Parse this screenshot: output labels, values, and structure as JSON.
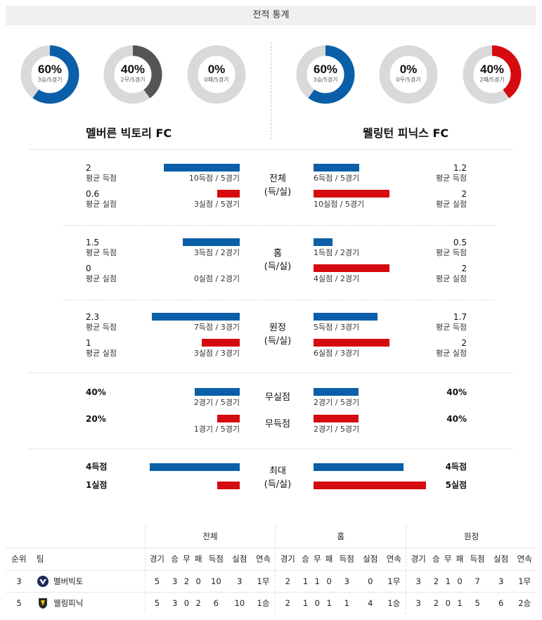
{
  "header": {
    "title": "전적 통계"
  },
  "teams": {
    "home": {
      "name": "멜버른 빅토리 FC",
      "short": "멜버빅토",
      "donuts": [
        {
          "pct": "60%",
          "sub": "3승/5경기",
          "value": 0.6,
          "color": "#0a5fa8"
        },
        {
          "pct": "40%",
          "sub": "2무/5경기",
          "value": 0.4,
          "color": "#555555"
        },
        {
          "pct": "0%",
          "sub": "0패/5경기",
          "value": 0.0,
          "color": "#d50b10"
        }
      ]
    },
    "away": {
      "name": "웰링턴 피닉스 FC",
      "short": "웰링피닉",
      "donuts": [
        {
          "pct": "60%",
          "sub": "3승/5경기",
          "value": 0.6,
          "color": "#0a5fa8"
        },
        {
          "pct": "0%",
          "sub": "0무/5경기",
          "value": 0.0,
          "color": "#555555"
        },
        {
          "pct": "40%",
          "sub": "2패/5경기",
          "value": 0.4,
          "color": "#d50b10"
        }
      ]
    }
  },
  "sections": [
    {
      "label1": "전체",
      "label2": "(득/실)",
      "home": {
        "gf_avg": "2",
        "gf_label": "평균 득점",
        "gf_cap": "10득점 / 5경기",
        "gf_ratio": 0.5,
        "ga_avg": "0.6",
        "ga_label": "평균 실점",
        "ga_cap": "3실점 / 5경기",
        "ga_ratio": 0.15
      },
      "away": {
        "gf_avg": "1.2",
        "gf_label": "평균 득점",
        "gf_cap": "6득점 / 5경기",
        "gf_ratio": 0.3,
        "ga_avg": "2",
        "ga_label": "평균 실점",
        "ga_cap": "10실점 / 5경기",
        "ga_ratio": 0.5
      }
    },
    {
      "label1": "홈",
      "label2": "(득/실)",
      "home": {
        "gf_avg": "1.5",
        "gf_label": "평균 득점",
        "gf_cap": "3득점 / 2경기",
        "gf_ratio": 0.375,
        "ga_avg": "0",
        "ga_label": "평균 실점",
        "ga_cap": "0실점 / 2경기",
        "ga_ratio": 0.0
      },
      "away": {
        "gf_avg": "0.5",
        "gf_label": "평균 득점",
        "gf_cap": "1득점 / 2경기",
        "gf_ratio": 0.125,
        "ga_avg": "2",
        "ga_label": "평균 실점",
        "ga_cap": "4실점 / 2경기",
        "ga_ratio": 0.5
      }
    },
    {
      "label1": "원정",
      "label2": "(득/실)",
      "home": {
        "gf_avg": "2.3",
        "gf_label": "평균 득점",
        "gf_cap": "7득점 / 3경기",
        "gf_ratio": 0.58,
        "ga_avg": "1",
        "ga_label": "평균 실점",
        "ga_cap": "3실점 / 3경기",
        "ga_ratio": 0.25
      },
      "away": {
        "gf_avg": "1.7",
        "gf_label": "평균 득점",
        "gf_cap": "5득점 / 3경기",
        "gf_ratio": 0.42,
        "ga_avg": "2",
        "ga_label": "평균 실점",
        "ga_cap": "6실점 / 3경기",
        "ga_ratio": 0.5
      }
    }
  ],
  "clean": {
    "rows": [
      {
        "label": "무실점",
        "home": {
          "pct": "40%",
          "cap": "2경기 / 5경기",
          "ratio": 0.4
        },
        "away": {
          "pct": "40%",
          "cap": "2경기 / 5경기",
          "ratio": 0.4
        }
      },
      {
        "label": "무득점",
        "home": {
          "pct": "20%",
          "cap": "1경기 / 5경기",
          "ratio": 0.2
        },
        "away": {
          "pct": "40%",
          "cap": "2경기 / 5경기",
          "ratio": 0.4
        }
      }
    ]
  },
  "max": {
    "label1": "최대",
    "label2": "(득/실)",
    "home": {
      "gf": "4득점",
      "gf_ratio": 0.8,
      "ga": "1실점",
      "ga_ratio": 0.2
    },
    "away": {
      "gf": "4득점",
      "gf_ratio": 0.8,
      "ga": "5실점",
      "ga_ratio": 1.0
    }
  },
  "standings": {
    "group_headers": [
      "전체",
      "홈",
      "원정"
    ],
    "col_rank": "순위",
    "col_team": "팀",
    "sub_headers": [
      "경기",
      "승",
      "무",
      "패",
      "득점",
      "실점",
      "연속"
    ],
    "rows": [
      {
        "rank": "3",
        "team": "멜버빅토",
        "all": [
          "5",
          "3",
          "2",
          "0",
          "10",
          "3",
          "1무"
        ],
        "home": [
          "2",
          "1",
          "1",
          "0",
          "3",
          "0",
          "1무"
        ],
        "away": [
          "3",
          "2",
          "1",
          "0",
          "7",
          "3",
          "1무"
        ]
      },
      {
        "rank": "5",
        "team": "웰링피닉",
        "all": [
          "5",
          "3",
          "0",
          "2",
          "6",
          "10",
          "1승"
        ],
        "home": [
          "2",
          "1",
          "0",
          "1",
          "1",
          "4",
          "1승"
        ],
        "away": [
          "3",
          "2",
          "0",
          "1",
          "5",
          "6",
          "2승"
        ]
      }
    ]
  },
  "colors": {
    "blue": "#0a5fa8",
    "red": "#d50b10",
    "gray": "#555555",
    "track": "#d9d9d9"
  }
}
